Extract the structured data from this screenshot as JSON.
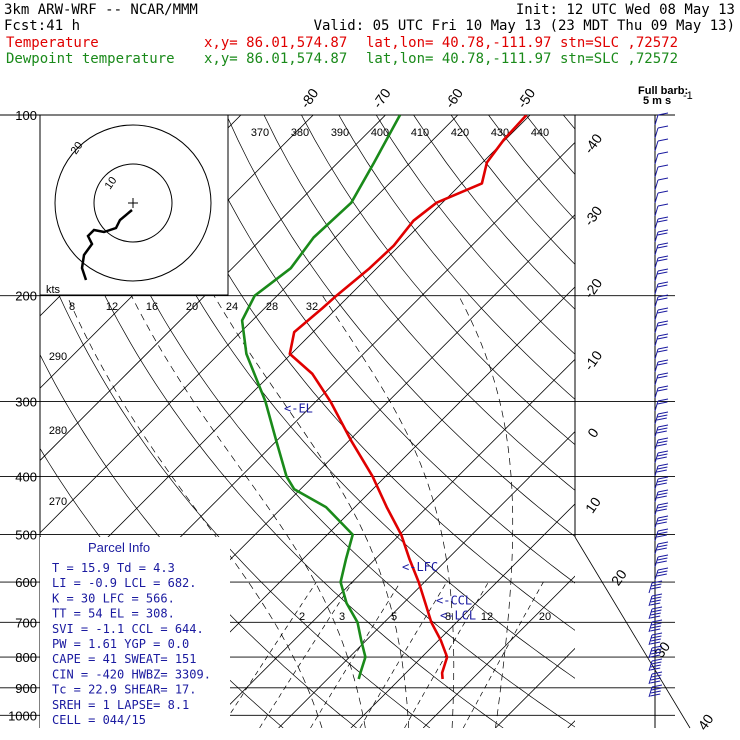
{
  "header": {
    "model": "3km ARW-WRF -- NCAR/MMM",
    "init": "Init: 12 UTC Wed 08 May 13",
    "fcst_label": "Fcst:",
    "fcst_value": "41 h",
    "valid": "Valid: 05 UTC Fri 10 May 13 (23 MDT Thu 09 May 13)",
    "temp_label": "Temperature",
    "dew_label": "Dewpoint temperature",
    "xy": "x,y= 86.01,574.87",
    "latlon": "lat,lon= 40.78,-111.97",
    "stn": "stn=SLC ,72572"
  },
  "colors": {
    "temperature": "#e00000",
    "dewpoint": "#1a8a1a",
    "labels": "#1a1aa0",
    "grid": "#000000"
  },
  "wind_legend": {
    "line1": "Full barb:",
    "line2": "5 m s",
    "sup": "-1"
  },
  "theta_labels": [
    "370",
    "380",
    "390",
    "400",
    "410",
    "420",
    "430",
    "440"
  ],
  "theta_labels_low": [
    "290",
    "280",
    "270"
  ],
  "mixing_ratio_labels": [
    "2",
    "3",
    "5",
    "8",
    "12",
    "20"
  ],
  "mixing_ratio_labels_mid": [
    "8",
    "12",
    "16",
    "20",
    "24",
    "28",
    "32"
  ],
  "hodograph": {
    "units": "kts",
    "ring_labels": [
      "10",
      "20"
    ]
  },
  "annotations": {
    "el": "<-EL",
    "lfc": "<-LFC",
    "ccl": "<-CCL",
    "lcl": "<-LCL"
  },
  "parcel_info": {
    "title": "Parcel Info",
    "rows": [
      "T  =   15.9  Td =   4.3",
      "LI =   -0.9  LCL =  682.",
      "K  =     30  LFC =  566.",
      "TT =     54  EL  =  308.",
      "SVI =  -1.1  CCL =  644.",
      "PW =   1.61  YGP =   0.0",
      "CAPE =   41  SWEAT=  151",
      "CIN =  -420  HWBZ= 3309.",
      "Tc =   22.9  SHEAR=  17.",
      "SREH =    1  LAPSE=  8.1",
      "CELL = 044/15"
    ]
  },
  "chart_data": {
    "type": "line",
    "title": "",
    "xlabel": "",
    "ylabel": "",
    "y_log_pressure": true,
    "pressure_levels": [
      100,
      200,
      300,
      400,
      500,
      600,
      700,
      800,
      900,
      1000
    ],
    "pressure_tick_labels": [
      "100",
      "200",
      "300",
      "400",
      "500",
      "600",
      "700",
      "800",
      "900",
      "1000"
    ],
    "temperature_tick_labels": [
      "-80",
      "-70",
      "-60",
      "-50",
      "-40",
      "-30",
      "-20",
      "-10",
      "0",
      "10",
      "20",
      "30",
      "40"
    ],
    "temperature_ticks": [
      -80,
      -70,
      -60,
      -50,
      -40,
      -30,
      -20,
      -10,
      0,
      10,
      20,
      30,
      40
    ],
    "xlim_at_bottom_C": [
      -33,
      41
    ],
    "series": [
      {
        "name": "Temperature",
        "points": [
          [
            1000,
            null
          ],
          [
            870,
            15.9
          ],
          [
            850,
            15
          ],
          [
            800,
            13.5
          ],
          [
            750,
            10.3
          ],
          [
            700,
            6.5
          ],
          [
            650,
            3.0
          ],
          [
            600,
            -0.8
          ],
          [
            550,
            -5.2
          ],
          [
            500,
            -9.8
          ],
          [
            450,
            -15.6
          ],
          [
            400,
            -21.8
          ],
          [
            350,
            -29.5
          ],
          [
            300,
            -38.0
          ],
          [
            270,
            -44.3
          ],
          [
            250,
            -50.2
          ],
          [
            230,
            -52.6
          ],
          [
            210,
            -52.0
          ],
          [
            200,
            -51.8
          ],
          [
            180,
            -51.0
          ],
          [
            165,
            -50.8
          ],
          [
            150,
            -51.5
          ],
          [
            140,
            -50.8
          ],
          [
            130,
            -47.2
          ],
          [
            120,
            -49.4
          ],
          [
            110,
            -50.2
          ],
          [
            100,
            -50.5
          ]
        ]
      },
      {
        "name": "Dewpoint temperature",
        "points": [
          [
            870,
            4.3
          ],
          [
            850,
            3.7
          ],
          [
            800,
            2.2
          ],
          [
            750,
            -0.7
          ],
          [
            700,
            -3.7
          ],
          [
            650,
            -7.9
          ],
          [
            600,
            -11.6
          ],
          [
            550,
            -14.0
          ],
          [
            500,
            -16.5
          ],
          [
            450,
            -24.0
          ],
          [
            420,
            -30.9
          ],
          [
            400,
            -33.7
          ],
          [
            350,
            -39.9
          ],
          [
            300,
            -47.0
          ],
          [
            250,
            -56.2
          ],
          [
            220,
            -61.4
          ],
          [
            200,
            -63.1
          ],
          [
            180,
            -61.9
          ],
          [
            160,
            -63.0
          ],
          [
            140,
            -62.6
          ],
          [
            120,
            -65.0
          ],
          [
            100,
            -68.0
          ]
        ]
      }
    ],
    "key_levels": {
      "LCL": 682,
      "LFC": 566,
      "EL": 308,
      "CCL": 644
    }
  }
}
